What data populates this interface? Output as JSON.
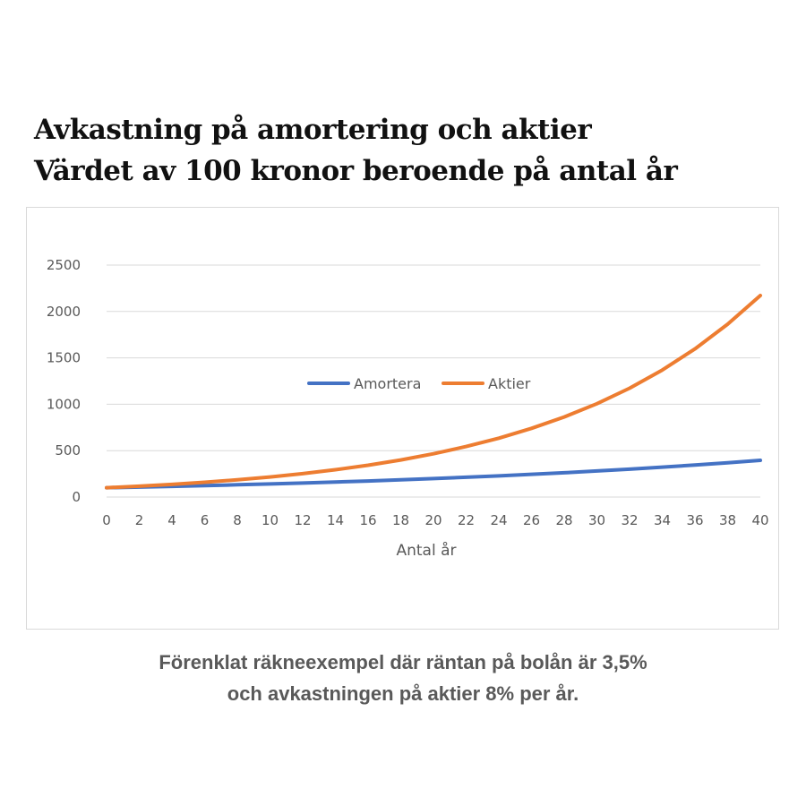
{
  "header": {
    "title_line1": "Avkastning på amortering och aktier",
    "title_line2": "Värdet av 100 kronor beroende på antal år"
  },
  "caption": {
    "line1": "Förenklat räkneexempel där räntan på bolån är 3,5%",
    "line2": "och avkastningen på aktier 8% per år."
  },
  "chart_data": {
    "type": "line",
    "title": "",
    "xlabel": "Antal år",
    "ylabel": "",
    "xlim": [
      0,
      40
    ],
    "ylim": [
      0,
      2500
    ],
    "x_ticks": [
      0,
      2,
      4,
      6,
      8,
      10,
      12,
      14,
      16,
      18,
      20,
      22,
      24,
      26,
      28,
      30,
      32,
      34,
      36,
      38,
      40
    ],
    "y_ticks": [
      0,
      500,
      1000,
      1500,
      2000,
      2500
    ],
    "grid": true,
    "legend_position": "center",
    "x": [
      0,
      2,
      4,
      6,
      8,
      10,
      12,
      14,
      16,
      18,
      20,
      22,
      24,
      26,
      28,
      30,
      32,
      34,
      36,
      38,
      40
    ],
    "series": [
      {
        "name": "Amortera",
        "color": "#4472C4",
        "values": [
          100,
          107,
          115,
          123,
          132,
          141,
          151,
          162,
          173,
          186,
          199,
          213,
          228,
          245,
          262,
          281,
          300,
          322,
          345,
          369,
          396
        ]
      },
      {
        "name": "Aktier",
        "color": "#ED7D31",
        "values": [
          100,
          117,
          136,
          159,
          185,
          216,
          252,
          294,
          343,
          400,
          466,
          544,
          634,
          740,
          863,
          1006,
          1173,
          1369,
          1597,
          1863,
          2172
        ]
      }
    ]
  }
}
